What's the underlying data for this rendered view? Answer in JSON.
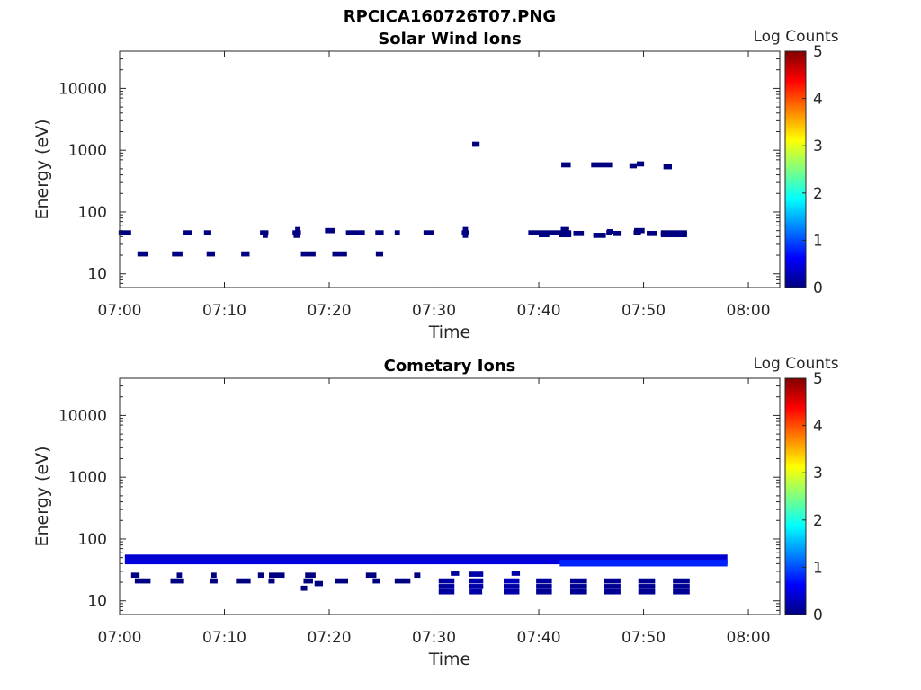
{
  "main_title": "RPCICA160726T07.PNG",
  "chart_data": [
    {
      "type": "heatmap",
      "title": "Solar Wind Ions",
      "xlabel": "Time",
      "ylabel": "Energy (eV)",
      "x_ticks": [
        "07:00",
        "07:10",
        "07:20",
        "07:30",
        "07:40",
        "07:50",
        "08:00"
      ],
      "x_range": [
        0,
        63
      ],
      "y_scale": "log",
      "y_ticks": [
        "10",
        "100",
        "1000",
        "10000"
      ],
      "y_range": [
        6,
        40000
      ],
      "colorbar": {
        "label": "Log Counts",
        "ticks": [
          "0",
          "1",
          "2",
          "3",
          "4",
          "5"
        ],
        "range": [
          0,
          5
        ]
      },
      "points": [
        [
          0.5,
          1.2,
          46,
          0
        ],
        [
          2.2,
          1.0,
          21,
          0
        ],
        [
          5.5,
          1.0,
          21,
          0
        ],
        [
          6.5,
          0.8,
          46,
          0
        ],
        [
          8.4,
          0.7,
          46,
          0
        ],
        [
          8.7,
          0.8,
          21,
          0
        ],
        [
          12.0,
          0.8,
          21,
          0
        ],
        [
          13.8,
          0.8,
          46,
          0
        ],
        [
          13.9,
          0.5,
          42,
          0
        ],
        [
          16.9,
          0.8,
          46,
          0
        ],
        [
          16.9,
          0.6,
          42,
          0
        ],
        [
          17.0,
          0.5,
          52,
          0
        ],
        [
          18.0,
          1.4,
          21,
          0
        ],
        [
          20.1,
          1.0,
          50,
          0
        ],
        [
          21.0,
          1.4,
          21,
          0
        ],
        [
          22.5,
          1.8,
          46,
          0
        ],
        [
          24.8,
          0.8,
          46,
          0
        ],
        [
          24.8,
          0.7,
          21,
          0
        ],
        [
          26.5,
          0.5,
          46,
          0
        ],
        [
          29.5,
          1.0,
          46,
          0
        ],
        [
          33.0,
          0.7,
          46,
          0
        ],
        [
          33.0,
          0.5,
          52,
          0
        ],
        [
          33.0,
          0.5,
          42,
          0
        ],
        [
          34.0,
          0.7,
          1250,
          0
        ],
        [
          40.5,
          3.0,
          46,
          0
        ],
        [
          40.5,
          1.0,
          43,
          0
        ],
        [
          42.5,
          1.2,
          46,
          0
        ],
        [
          42.5,
          1.2,
          43,
          0
        ],
        [
          42.5,
          0.8,
          52,
          0
        ],
        [
          43.8,
          1.0,
          45,
          0
        ],
        [
          42.6,
          0.9,
          580,
          0
        ],
        [
          46.0,
          2.0,
          580,
          0
        ],
        [
          45.8,
          1.2,
          42,
          0
        ],
        [
          46.7,
          0.5,
          46,
          0
        ],
        [
          46.8,
          0.6,
          48,
          0
        ],
        [
          47.5,
          0.8,
          45,
          0
        ],
        [
          49.4,
          0.7,
          46,
          0
        ],
        [
          49.6,
          1.0,
          50,
          0
        ],
        [
          50.8,
          1.0,
          45,
          0
        ],
        [
          49.0,
          0.7,
          560,
          0
        ],
        [
          49.7,
          0.7,
          600,
          0
        ],
        [
          52.3,
          0.8,
          540,
          0
        ],
        [
          52.9,
          2.5,
          46,
          0
        ],
        [
          52.9,
          2.5,
          43,
          0
        ]
      ]
    },
    {
      "type": "heatmap",
      "title": "Cometary Ions",
      "xlabel": "Time",
      "ylabel": "Energy (eV)",
      "x_ticks": [
        "07:00",
        "07:10",
        "07:20",
        "07:30",
        "07:40",
        "07:50",
        "08:00"
      ],
      "x_range": [
        0,
        63
      ],
      "y_scale": "log",
      "y_ticks": [
        "10",
        "100",
        "1000",
        "10000"
      ],
      "y_range": [
        6,
        40000
      ],
      "colorbar": {
        "label": "Log Counts",
        "ticks": [
          "0",
          "1",
          "2",
          "3",
          "4",
          "5"
        ],
        "range": [
          0,
          5
        ]
      },
      "bands": [
        {
          "x": [
            0.5,
            58.0
          ],
          "y": [
            47,
            56
          ],
          "v": 0.4
        },
        {
          "x": [
            0.5,
            58.0
          ],
          "y": [
            39,
            47
          ],
          "v": 0.45
        },
        {
          "x": [
            42.0,
            58.0
          ],
          "y": [
            36,
            46
          ],
          "v": 0.8
        }
      ],
      "points": [
        [
          1.5,
          0.8,
          26,
          0
        ],
        [
          2.2,
          1.5,
          21,
          0
        ],
        [
          5.5,
          1.3,
          21,
          0
        ],
        [
          5.7,
          0.5,
          26,
          0
        ],
        [
          9.0,
          0.7,
          21,
          0
        ],
        [
          9.0,
          0.5,
          26,
          0
        ],
        [
          11.8,
          1.4,
          21,
          0
        ],
        [
          13.5,
          0.6,
          26,
          0
        ],
        [
          14.5,
          0.6,
          21,
          0
        ],
        [
          15.0,
          1.5,
          26,
          0
        ],
        [
          18.2,
          1.0,
          26,
          0
        ],
        [
          18.0,
          0.9,
          21,
          0
        ],
        [
          17.6,
          0.6,
          16,
          0
        ],
        [
          19.0,
          0.8,
          19,
          0
        ],
        [
          21.2,
          1.2,
          21,
          0
        ],
        [
          24.0,
          1.0,
          26,
          0
        ],
        [
          24.5,
          0.7,
          21,
          0
        ],
        [
          27.0,
          1.5,
          21,
          0
        ],
        [
          28.4,
          0.6,
          26,
          0
        ],
        [
          31.2,
          1.5,
          21,
          0.15
        ],
        [
          31.2,
          1.5,
          17,
          0.15
        ],
        [
          31.2,
          1.5,
          14,
          0.15
        ],
        [
          32.0,
          0.8,
          28,
          0.15
        ],
        [
          34.0,
          1.4,
          27,
          0.2
        ],
        [
          34.0,
          1.4,
          21,
          0.2
        ],
        [
          34.0,
          1.4,
          17,
          0.2
        ],
        [
          34.0,
          1.2,
          14,
          0.2
        ],
        [
          37.4,
          1.5,
          21,
          0.3
        ],
        [
          37.4,
          1.5,
          17,
          0.2
        ],
        [
          37.4,
          1.5,
          14,
          0.2
        ],
        [
          37.8,
          0.8,
          28,
          0.2
        ],
        [
          40.5,
          1.5,
          21,
          0.15
        ],
        [
          40.5,
          1.5,
          17,
          0.1
        ],
        [
          40.5,
          1.5,
          14,
          0.1
        ],
        [
          43.8,
          1.6,
          21,
          0.1
        ],
        [
          43.8,
          1.6,
          17,
          0.1
        ],
        [
          43.8,
          1.6,
          14,
          0.1
        ],
        [
          47.0,
          1.6,
          21,
          0.1
        ],
        [
          47.0,
          1.6,
          17,
          0.1
        ],
        [
          47.0,
          1.6,
          14,
          0.1
        ],
        [
          50.3,
          1.6,
          21,
          0.1
        ],
        [
          50.3,
          1.6,
          17,
          0.1
        ],
        [
          50.3,
          1.6,
          14,
          0.1
        ],
        [
          53.6,
          1.6,
          21,
          0.1
        ],
        [
          53.6,
          1.6,
          17,
          0.1
        ],
        [
          53.6,
          1.6,
          14,
          0.1
        ]
      ]
    }
  ]
}
